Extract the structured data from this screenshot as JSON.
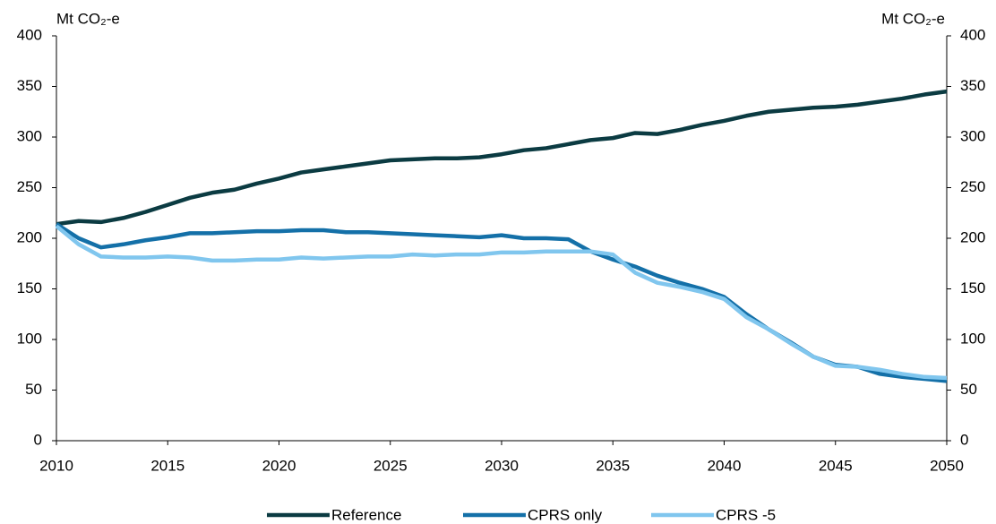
{
  "chart_data": {
    "type": "line",
    "y_label": "Mt CO₂-e",
    "y2_label": "Mt CO₂-e",
    "x": [
      2010,
      2011,
      2012,
      2013,
      2014,
      2015,
      2016,
      2017,
      2018,
      2019,
      2020,
      2021,
      2022,
      2023,
      2024,
      2025,
      2026,
      2027,
      2028,
      2029,
      2030,
      2031,
      2032,
      2033,
      2034,
      2035,
      2036,
      2037,
      2038,
      2039,
      2040,
      2041,
      2042,
      2043,
      2044,
      2045,
      2046,
      2047,
      2048,
      2049,
      2050
    ],
    "series": [
      {
        "name": "Reference",
        "color": "#0b3b42",
        "values": [
          214,
          217,
          216,
          220,
          226,
          233,
          240,
          245,
          248,
          254,
          259,
          265,
          268,
          271,
          274,
          277,
          278,
          279,
          279,
          280,
          283,
          287,
          289,
          293,
          297,
          299,
          304,
          303,
          307,
          312,
          316,
          321,
          325,
          327,
          329,
          330,
          332,
          335,
          338,
          342,
          345
        ]
      },
      {
        "name": "CPRS only",
        "color": "#1470a8",
        "values": [
          214,
          200,
          191,
          194,
          198,
          201,
          205,
          205,
          206,
          207,
          207,
          208,
          208,
          206,
          206,
          205,
          204,
          203,
          202,
          201,
          203,
          200,
          200,
          199,
          187,
          179,
          172,
          163,
          156,
          150,
          142,
          125,
          110,
          97,
          83,
          75,
          73,
          66,
          63,
          61,
          59
        ]
      },
      {
        "name": "CPRS -5",
        "color": "#80c6ee",
        "values": [
          212,
          194,
          182,
          181,
          181,
          182,
          181,
          178,
          178,
          179,
          179,
          181,
          180,
          181,
          182,
          182,
          184,
          183,
          184,
          184,
          186,
          186,
          187,
          187,
          187,
          184,
          166,
          156,
          152,
          147,
          140,
          122,
          110,
          96,
          83,
          74,
          73,
          70,
          66,
          63,
          62
        ]
      }
    ],
    "xlim": [
      2010,
      2050
    ],
    "xticks": [
      2010,
      2015,
      2020,
      2025,
      2030,
      2035,
      2040,
      2045,
      2050
    ],
    "ylim": [
      0,
      400
    ],
    "yticks": [
      0,
      50,
      100,
      150,
      200,
      250,
      300,
      350,
      400
    ],
    "y2lim": [
      0,
      400
    ],
    "y2ticks": [
      0,
      50,
      100,
      150,
      200,
      250,
      300,
      350,
      400
    ],
    "legend": "bottom"
  }
}
